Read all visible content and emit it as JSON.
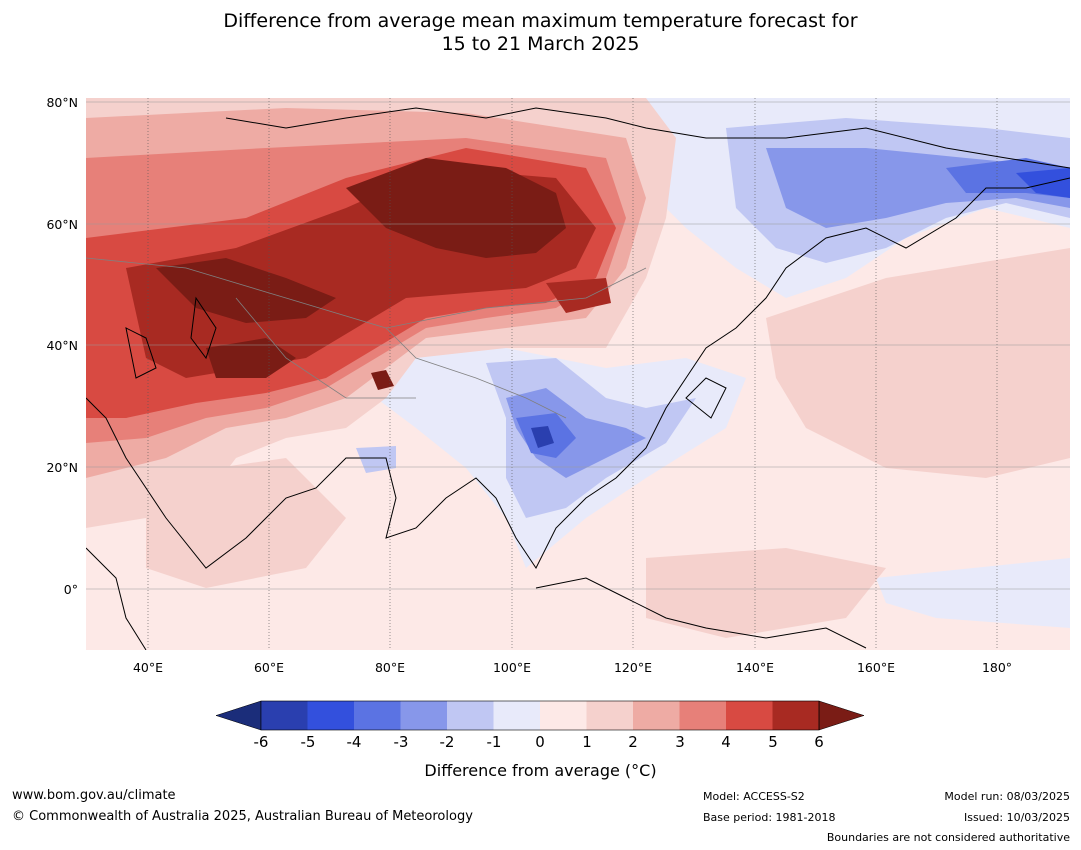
{
  "title": {
    "line1": "Difference from average mean maximum temperature forecast for",
    "line2": "15 to 21 March 2025"
  },
  "map": {
    "lat_labels": [
      "80°N",
      "60°N",
      "40°N",
      "20°N",
      "0°"
    ],
    "lon_labels": [
      "40°E",
      "60°E",
      "80°E",
      "100°E",
      "120°E",
      "140°E",
      "160°E",
      "180°"
    ],
    "colors": {
      "m6": "#1b2d7a",
      "m5": "#2a3faf",
      "m4": "#3350dd",
      "m3": "#5b73e3",
      "m2": "#8797ea",
      "m1": "#c0c7f3",
      "m0": "#e8eafa",
      "p0": "#fde9e7",
      "p1": "#f5d1cd",
      "p2": "#eeaba4",
      "p3": "#e78079",
      "p4": "#d84a42",
      "p5": "#a82a22",
      "p6": "#7a1c15",
      "coast": "#000000",
      "border": "#808080",
      "grid": "#555555"
    }
  },
  "colorbar": {
    "ticks": [
      "-6",
      "-5",
      "-4",
      "-3",
      "-2",
      "-1",
      "0",
      "1",
      "2",
      "3",
      "4",
      "5",
      "6"
    ],
    "label": "Difference from average (°C)"
  },
  "footer": {
    "website": "www.bom.gov.au/climate",
    "copyright": "© Commonwealth of Australia 2025, Australian Bureau of Meteorology",
    "model": "Model: ACCESS-S2",
    "base_period": "Base period: 1981-2018",
    "model_run": "Model run: 08/03/2025",
    "issued": "Issued: 10/03/2025",
    "disclaimer": "Boundaries are not considered authoritative"
  }
}
